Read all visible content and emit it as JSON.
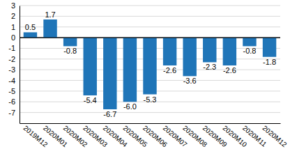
{
  "chart_data": {
    "type": "bar",
    "categories": [
      "2019M12",
      "2020M01",
      "2020M02",
      "2020M03",
      "2020M04",
      "2020M05",
      "2020M06",
      "2020M07",
      "2020M08",
      "2020M09",
      "2020M10",
      "2020M11",
      "2020M12"
    ],
    "values": [
      0.5,
      1.7,
      -0.8,
      -5.4,
      -6.7,
      -6.0,
      -5.3,
      -2.6,
      -3.6,
      -2.3,
      -2.6,
      -0.8,
      -1.8
    ],
    "value_labels": [
      "0.5",
      "1.7",
      "-0.8",
      "-5.4",
      "-6.7",
      "-6.0",
      "-5.3",
      "-2.6",
      "-3.6",
      "-2.3",
      "-2.6",
      "-0.8",
      "-1.8"
    ],
    "color": "#1f75b8",
    "ylim": [
      -8,
      3
    ],
    "yticks": [
      3,
      2,
      1,
      0,
      -1,
      -2,
      -3,
      -4,
      -5,
      -6,
      -7
    ],
    "grid": true,
    "data_labels": true
  }
}
